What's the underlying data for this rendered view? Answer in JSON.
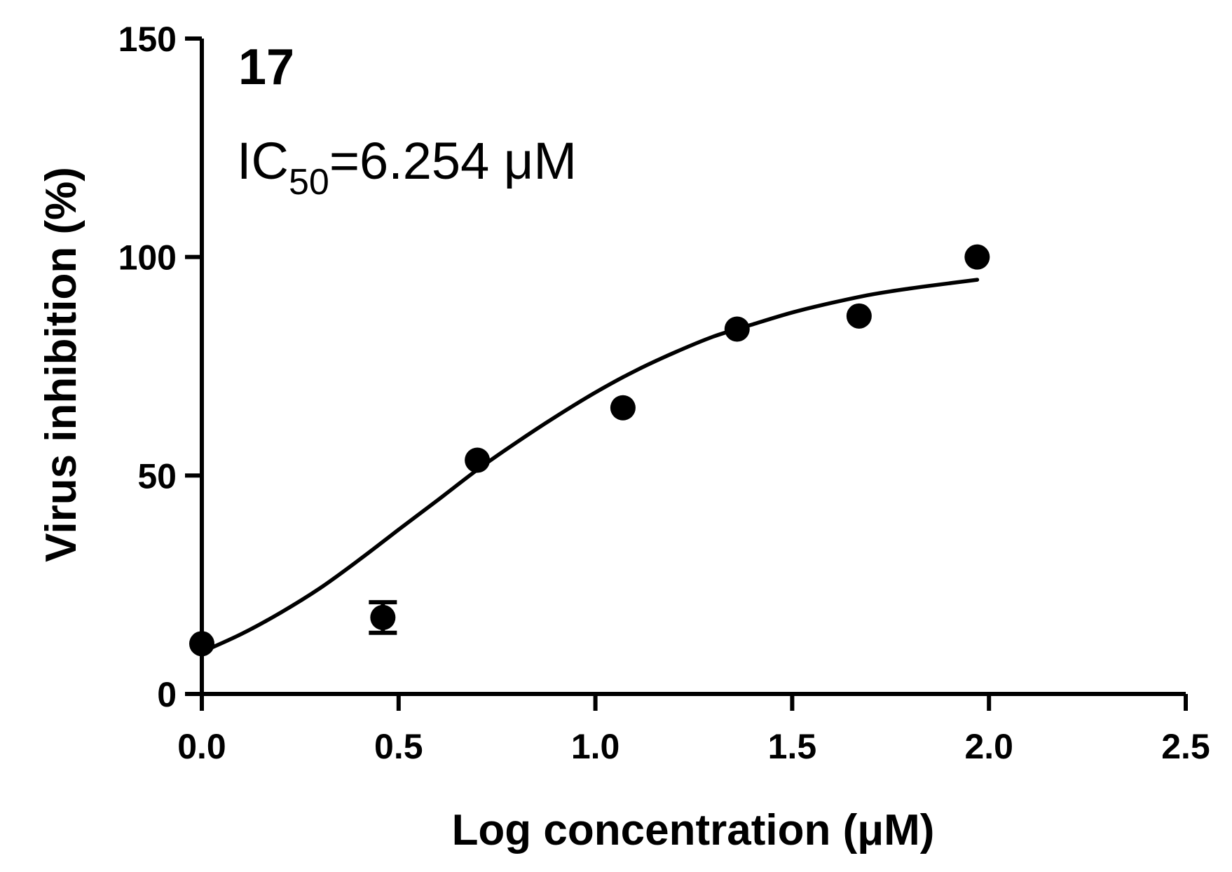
{
  "chart_data": {
    "type": "scatter",
    "panel_label": "17",
    "annotation": {
      "prefix": "IC",
      "subscript": "50",
      "suffix": "=6.254 μM"
    },
    "xlabel": "Log concentration (μM)",
    "ylabel": "Virus inhibition (%)",
    "xlim": [
      0,
      2.5
    ],
    "ylim": [
      0,
      150
    ],
    "xticks": [
      0.0,
      0.5,
      1.0,
      1.5,
      2.0,
      2.5
    ],
    "xtick_labels": [
      "0.0",
      "0.5",
      "1.0",
      "1.5",
      "2.0",
      "2.5"
    ],
    "yticks": [
      0,
      50,
      100,
      150
    ],
    "ytick_labels": [
      "0",
      "50",
      "100",
      "150"
    ],
    "grid": false,
    "legend": "none",
    "series": [
      {
        "kind": "points",
        "x": [
          0.0,
          0.46,
          0.7,
          1.07,
          1.36,
          1.67,
          1.97
        ],
        "y": [
          11.5,
          17.5,
          53.5,
          65.5,
          83.5,
          86.5,
          100
        ],
        "err": [
          0,
          3.5,
          0,
          0,
          0,
          0,
          0
        ]
      },
      {
        "kind": "fit-curve",
        "x": [
          0.0,
          0.1,
          0.2,
          0.3,
          0.4,
          0.5,
          0.6,
          0.7,
          0.8,
          0.9,
          1.0,
          1.1,
          1.2,
          1.3,
          1.4,
          1.5,
          1.6,
          1.7,
          1.8,
          1.9,
          1.97
        ],
        "y": [
          9.6,
          13.7,
          18.6,
          24.2,
          30.7,
          37.6,
          44.4,
          51.3,
          57.6,
          63.5,
          69.0,
          73.9,
          78.1,
          81.8,
          84.6,
          87.3,
          89.5,
          91.4,
          92.8,
          94.0,
          94.8
        ]
      }
    ],
    "colors": {
      "ink": "#000000",
      "background": "#ffffff"
    }
  }
}
